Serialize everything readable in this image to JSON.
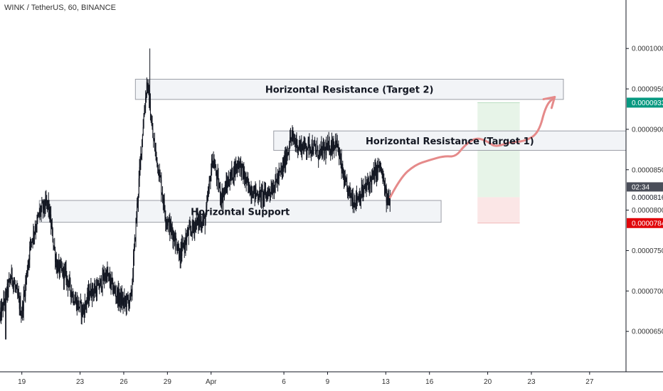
{
  "header": {
    "title": "WINK / TetherUS, 60, BINANCE"
  },
  "chart_data": {
    "type": "candlestick",
    "symbol": "WINK / TetherUS",
    "interval": "60",
    "exchange": "BINANCE",
    "ylim": [
      6e-05,
      0.000106
    ],
    "y_ticks": [
      "0.0001000",
      "0.0000950",
      "0.0000900",
      "0.0000850",
      "0.0000800",
      "0.0000750",
      "0.0000700",
      "0.0000650"
    ],
    "y_tick_values": [
      0.0001,
      9.5e-05,
      9e-05,
      8.5e-05,
      8e-05,
      7.5e-05,
      7e-05,
      6.5e-05
    ],
    "x_ticks": [
      "19",
      "23",
      "26",
      "29",
      "Apr",
      "6",
      "9",
      "13",
      "16",
      "20",
      "23",
      "27"
    ],
    "x_tick_days": [
      19,
      23,
      26,
      29,
      32,
      37,
      40,
      44,
      47,
      51,
      54,
      58
    ],
    "x_range_days": [
      17.5,
      60.5
    ],
    "price_path": [
      [
        17.5,
        6.68e-05
      ],
      [
        18.3,
        7.2e-05
      ],
      [
        19.0,
        6.72e-05
      ],
      [
        19.6,
        7.6e-05
      ],
      [
        20.3,
        8e-05
      ],
      [
        20.8,
        8.08e-05
      ],
      [
        21.4,
        7.3e-05
      ],
      [
        22.0,
        7.2e-05
      ],
      [
        22.6,
        6.9e-05
      ],
      [
        23.2,
        6.75e-05
      ],
      [
        23.7,
        7e-05
      ],
      [
        24.2,
        7.02e-05
      ],
      [
        24.8,
        7.22e-05
      ],
      [
        25.4,
        6.98e-05
      ],
      [
        26.0,
        6.85e-05
      ],
      [
        26.5,
        6.9e-05
      ],
      [
        26.9,
        8e-05
      ],
      [
        27.3,
        9e-05
      ],
      [
        27.6,
        9.6e-05
      ],
      [
        28.0,
        8.9e-05
      ],
      [
        28.4,
        8.5e-05
      ],
      [
        28.9,
        7.9e-05
      ],
      [
        29.4,
        7.7e-05
      ],
      [
        29.9,
        7.45e-05
      ],
      [
        30.4,
        7.7e-05
      ],
      [
        31.0,
        7.85e-05
      ],
      [
        31.6,
        7.88e-05
      ],
      [
        32.1,
        8.65e-05
      ],
      [
        32.7,
        8.15e-05
      ],
      [
        33.3,
        8.4e-05
      ],
      [
        33.9,
        8.6e-05
      ],
      [
        34.5,
        8.3e-05
      ],
      [
        35.1,
        8.2e-05
      ],
      [
        35.7,
        8.18e-05
      ],
      [
        36.3,
        8.3e-05
      ],
      [
        36.9,
        8.5e-05
      ],
      [
        37.5,
        8.9e-05
      ],
      [
        38.1,
        8.78e-05
      ],
      [
        38.8,
        8.8e-05
      ],
      [
        39.4,
        8.7e-05
      ],
      [
        40.0,
        8.76e-05
      ],
      [
        40.6,
        8.85e-05
      ],
      [
        41.2,
        8.3e-05
      ],
      [
        41.8,
        8.12e-05
      ],
      [
        42.4,
        8.22e-05
      ],
      [
        43.0,
        8.38e-05
      ],
      [
        43.6,
        8.55e-05
      ],
      [
        44.1,
        8.1e-05
      ],
      [
        44.3,
        8.16e-05
      ]
    ],
    "projection_path": [
      [
        44.3,
        8.16e-05
      ],
      [
        45.0,
        8.4e-05
      ],
      [
        46.0,
        8.56e-05
      ],
      [
        47.0,
        8.62e-05
      ],
      [
        48.0,
        8.67e-05
      ],
      [
        48.8,
        8.66e-05
      ],
      [
        49.4,
        8.8e-05
      ],
      [
        50.2,
        8.9e-05
      ],
      [
        51.0,
        8.85e-05
      ],
      [
        51.5,
        8.78e-05
      ],
      [
        52.5,
        8.84e-05
      ],
      [
        53.5,
        8.85e-05
      ],
      [
        54.5,
        8.95e-05
      ],
      [
        55.0,
        9.3e-05
      ],
      [
        55.6,
        9.4e-05
      ]
    ],
    "zones": [
      {
        "name": "resistance2",
        "label": "Horizontal Resistance (Target 2)",
        "day_start": 26.8,
        "day_end": 56.2,
        "top": 9.62e-05,
        "bottom": 9.37e-05
      },
      {
        "name": "resistance1",
        "label": "Horizontal Resistance (Target 1)",
        "day_start": 36.3,
        "day_end": 60.5,
        "top": 8.98e-05,
        "bottom": 8.74e-05
      },
      {
        "name": "support",
        "label": "Horizontal Support",
        "day_start": 20.2,
        "day_end": 47.8,
        "top": 8.12e-05,
        "bottom": 7.85e-05
      }
    ],
    "position": {
      "day_start": 50.3,
      "day_end": 53.2,
      "target": 9.33e-05,
      "entry": 8.16e-05,
      "stop": 7.84e-05
    },
    "price_labels": {
      "target": {
        "text": "0.0000933",
        "value": 9.33e-05,
        "color": "#089981"
      },
      "countdown": {
        "text": "02:34",
        "value": 8.21e-05,
        "color": "#4a4e59"
      },
      "current": {
        "text": "0.0000816",
        "value": 8.16e-05,
        "color": "#ffffff"
      },
      "stop": {
        "text": "0.0000784",
        "value": 7.84e-05,
        "color": "#e1070b"
      }
    },
    "colors": {
      "candles": "#131722",
      "projection": "#e58a8a",
      "profit": "#e7f4e8",
      "loss": "#fbe6e6",
      "zone_fill": "#f0f2f6",
      "zone_border": "#9b9ea6"
    }
  }
}
